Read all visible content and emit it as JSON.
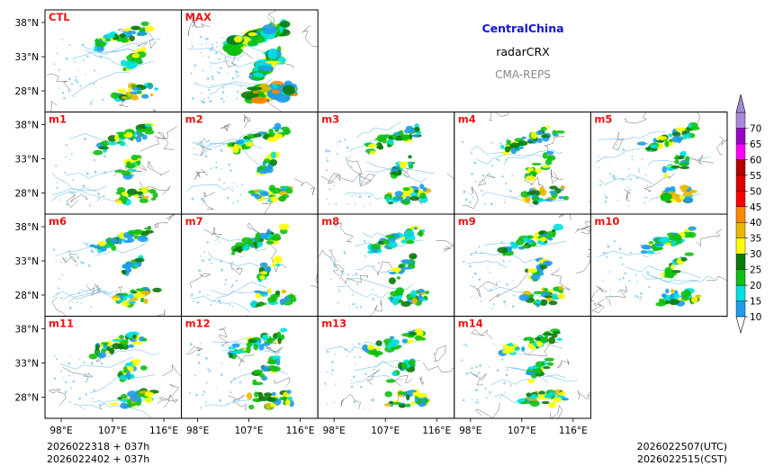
{
  "header": {
    "region": "CentralChina",
    "variable": "radarCRX",
    "model": "CMA-REPS"
  },
  "chart_data": {
    "type": "heatmap",
    "title": "CentralChina radarCRX CMA-REPS",
    "panels": [
      "CTL",
      "MAX",
      "m1",
      "m2",
      "m3",
      "m4",
      "m5",
      "m6",
      "m7",
      "m8",
      "m9",
      "m10",
      "m11",
      "m12",
      "m13",
      "m14"
    ],
    "y_ticks": [
      "38°N",
      "33°N",
      "28°N"
    ],
    "x_ticks": [
      "98°E",
      "107°E",
      "116°E"
    ],
    "colorbar": {
      "levels": [
        10,
        15,
        20,
        25,
        30,
        35,
        40,
        45,
        50,
        55,
        60,
        65,
        70
      ],
      "colors": [
        "#1e9bea",
        "#00e0e0",
        "#10c010",
        "#0a7a0a",
        "#ffff00",
        "#e8b800",
        "#ff8800",
        "#ff0000",
        "#e00000",
        "#b40000",
        "#ff00ff",
        "#9a00c8",
        "#a888d8"
      ],
      "extend": "both"
    }
  },
  "footer": {
    "init_line1": "2026022318  +  037h",
    "init_line2": "2026022402  +  037h",
    "valid_utc": "2026022507(UTC)",
    "valid_cst": "2026022515(CST)"
  }
}
